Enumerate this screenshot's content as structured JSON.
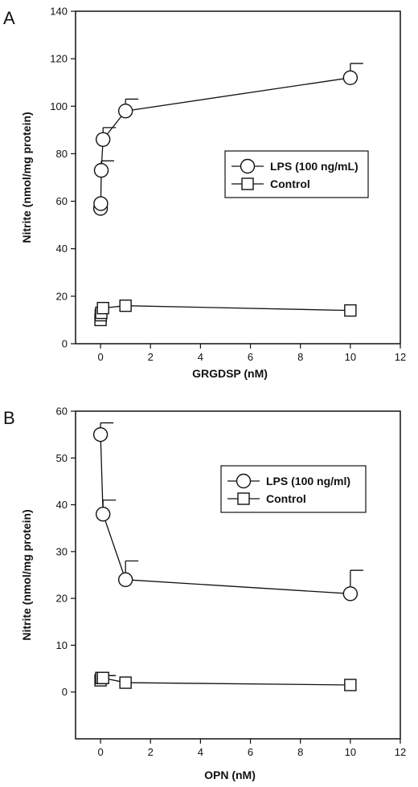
{
  "chart_data": [
    {
      "type": "line",
      "panel": "A",
      "xlabel": "GRGDSP (nM)",
      "ylabel": "Nitrite (nmol/mg protein)",
      "xlim": [
        -1,
        12
      ],
      "ylim": [
        0,
        140
      ],
      "xticks": [
        0,
        2,
        4,
        6,
        8,
        10,
        12
      ],
      "yticks": [
        0,
        20,
        40,
        60,
        80,
        100,
        120,
        140
      ],
      "legend_position": "right-middle",
      "series": [
        {
          "name": "LPS (100 ng/mL)",
          "marker": "circle",
          "x": [
            0,
            0.01,
            0.03,
            0.1,
            1,
            10
          ],
          "y": [
            57,
            59,
            73,
            86,
            98,
            112
          ],
          "error_upper": [
            0,
            0,
            4,
            5,
            5,
            6
          ]
        },
        {
          "name": "Control",
          "marker": "square",
          "x": [
            0,
            0.01,
            0.03,
            0.1,
            1,
            10
          ],
          "y": [
            10,
            12,
            13,
            15,
            16,
            14
          ],
          "error_upper": [
            0,
            0,
            0,
            0,
            0,
            0
          ]
        }
      ]
    },
    {
      "type": "line",
      "panel": "B",
      "xlabel": "OPN (nM)",
      "ylabel": "Nitrite (nmol/mg protein)",
      "xlim": [
        -1,
        12
      ],
      "ylim": [
        -10,
        60
      ],
      "xticks": [
        0,
        2,
        4,
        6,
        8,
        10,
        12
      ],
      "yticks": [
        0,
        10,
        20,
        30,
        40,
        50,
        60
      ],
      "legend_position": "right-upper",
      "series": [
        {
          "name": "LPS (100 ng/ml)",
          "marker": "circle",
          "x": [
            0,
            0.1,
            1,
            10
          ],
          "y": [
            55,
            38,
            24,
            21
          ],
          "error_upper": [
            2.5,
            3,
            4,
            5
          ]
        },
        {
          "name": "Control",
          "marker": "square",
          "x": [
            0,
            0.03,
            0.1,
            1,
            10
          ],
          "y": [
            2.5,
            3,
            3,
            2,
            1.5
          ],
          "error_upper": [
            0,
            0.5,
            0.5,
            0,
            0
          ]
        }
      ]
    }
  ]
}
